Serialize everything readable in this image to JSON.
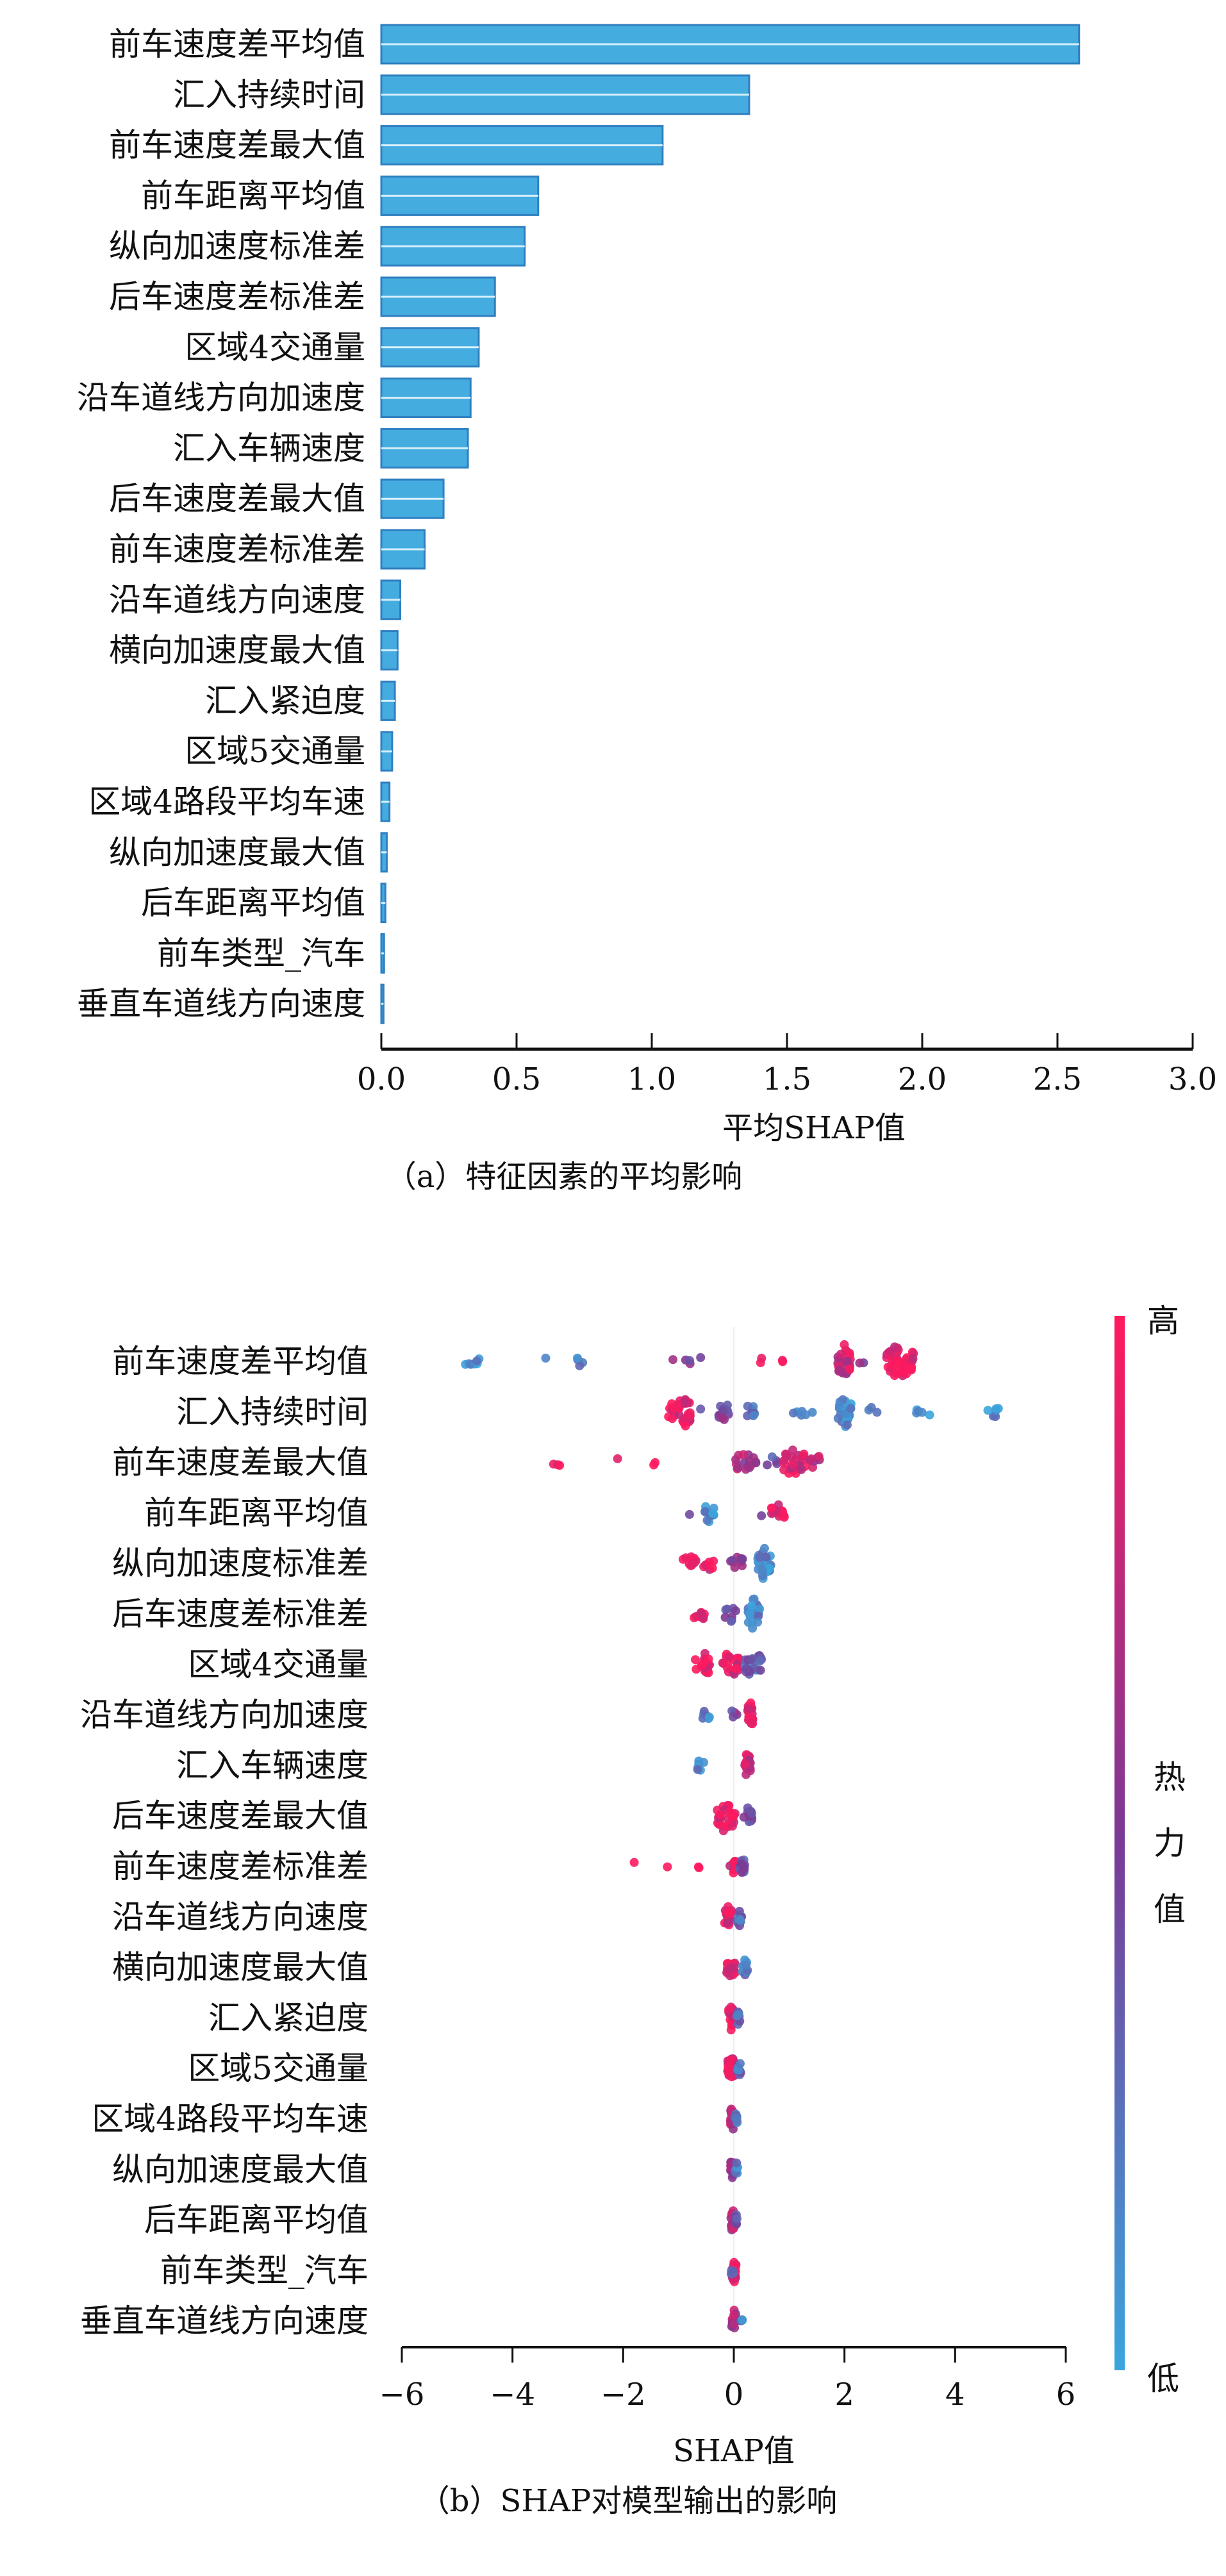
{
  "chart_data": [
    {
      "type": "bar",
      "orientation": "horizontal",
      "title": "",
      "caption": "（a）特征因素的平均影响",
      "xlabel": "平均SHAP值",
      "ylabel": "",
      "xlim": [
        0,
        3.0
      ],
      "xticks": [
        "0.0",
        "0.5",
        "1.0",
        "1.5",
        "2.0",
        "2.5",
        "3.0"
      ],
      "categories": [
        "前车速度差平均值",
        "汇入持续时间",
        "前车速度差最大值",
        "前车距离平均值",
        "纵向加速度标准差",
        "后车速度差标准差",
        "区域4交通量",
        "沿车道线方向加速度",
        "汇入车辆速度",
        "后车速度差最大值",
        "前车速度差标准差",
        "沿车道线方向速度",
        "横向加速度最大值",
        "汇入紧迫度",
        "区域5交通量",
        "区域4路段平均车速",
        "纵向加速度最大值",
        "后车距离平均值",
        "前车类型_汽车",
        "垂直车道线方向速度"
      ],
      "values": [
        2.58,
        1.36,
        1.04,
        0.58,
        0.53,
        0.42,
        0.36,
        0.33,
        0.32,
        0.23,
        0.16,
        0.07,
        0.06,
        0.05,
        0.04,
        0.03,
        0.02,
        0.015,
        0.01,
        0.008
      ],
      "bar_color": "#45ace0"
    },
    {
      "type": "scatter",
      "subtype": "beeswarm",
      "caption": "（b）SHAP对模型输出的影响",
      "xlabel": "SHAP值",
      "xlim": [
        -6,
        6
      ],
      "xticks": [
        "−6",
        "−4",
        "−2",
        "0",
        "2",
        "4",
        "6"
      ],
      "xtick_values": [
        -6,
        -4,
        -2,
        0,
        2,
        4,
        6
      ],
      "colorbar": {
        "high_label": "高",
        "low_label": "低",
        "title": [
          "热",
          "力",
          "值"
        ],
        "low_color": "#3aa6dd",
        "mid_color": "#7a3a96",
        "high_color": "#ff1a5e"
      },
      "features": [
        {
          "name": "前车速度差平均值",
          "groups": [
            [
              -4.7,
              0.15,
              7,
              0.1
            ],
            [
              -3.4,
              0,
              1,
              0.15
            ],
            [
              -2.8,
              0.08,
              4,
              0.15
            ],
            [
              -1.1,
              0,
              1,
              0.5
            ],
            [
              -0.8,
              0.08,
              3,
              0.5
            ],
            [
              -0.6,
              0,
              1,
              0.5
            ],
            [
              0.5,
              0.05,
              2,
              0.95
            ],
            [
              0.9,
              0.05,
              2,
              0.95
            ],
            [
              2.0,
              0.12,
              28,
              0.8
            ],
            [
              2.3,
              0.05,
              2,
              0.5
            ],
            [
              3.0,
              0.25,
              45,
              0.9
            ]
          ]
        },
        {
          "name": "汇入持续时间",
          "groups": [
            [
              -1.1,
              0.1,
              12,
              0.95
            ],
            [
              -0.9,
              0.12,
              28,
              0.9
            ],
            [
              -0.6,
              0,
              1,
              0.5
            ],
            [
              -0.15,
              0.12,
              14,
              0.5
            ],
            [
              0.3,
              0.08,
              10,
              0.25
            ],
            [
              1.2,
              0.25,
              6,
              0.2
            ],
            [
              2.0,
              0.12,
              28,
              0.15
            ],
            [
              2.5,
              0.1,
              3,
              0.2
            ],
            [
              3.4,
              0.25,
              5,
              0.15
            ],
            [
              4.7,
              0.12,
              6,
              0.1
            ]
          ]
        },
        {
          "name": "前车速度差最大值",
          "groups": [
            [
              -3.2,
              0.08,
              3,
              1.0
            ],
            [
              -2.1,
              0,
              1,
              1.0
            ],
            [
              -1.4,
              0.05,
              2,
              1.0
            ],
            [
              0.2,
              0.2,
              16,
              0.7
            ],
            [
              0.7,
              0.1,
              4,
              0.4
            ],
            [
              1.1,
              0.2,
              26,
              0.85
            ],
            [
              1.5,
              0.12,
              8,
              0.7
            ]
          ]
        },
        {
          "name": "前车距离平均值",
          "groups": [
            [
              -0.8,
              0,
              1,
              0.4
            ],
            [
              -0.45,
              0.1,
              12,
              0.15
            ],
            [
              0.5,
              0,
              1,
              0.5
            ],
            [
              0.8,
              0.12,
              14,
              0.95
            ]
          ]
        },
        {
          "name": "纵向加速度标准差",
          "groups": [
            [
              -0.8,
              0.12,
              10,
              0.95
            ],
            [
              -0.45,
              0.1,
              8,
              0.9
            ],
            [
              0.05,
              0.12,
              10,
              0.6
            ],
            [
              0.55,
              0.12,
              28,
              0.15
            ]
          ]
        },
        {
          "name": "后车速度差标准差",
          "groups": [
            [
              -0.6,
              0.12,
              9,
              0.95
            ],
            [
              -0.05,
              0.12,
              8,
              0.4
            ],
            [
              0.35,
              0.12,
              26,
              0.15
            ]
          ]
        },
        {
          "name": "区域4交通量",
          "groups": [
            [
              -0.55,
              0.15,
              18,
              0.95
            ],
            [
              -0.05,
              0.15,
              22,
              0.9
            ],
            [
              0.35,
              0.15,
              24,
              0.3
            ]
          ]
        },
        {
          "name": "沿车道线方向加速度",
          "groups": [
            [
              -0.5,
              0.06,
              6,
              0.15
            ],
            [
              0.0,
              0.06,
              4,
              0.5
            ],
            [
              0.3,
              0.05,
              24,
              0.9
            ]
          ]
        },
        {
          "name": "汇入车辆速度",
          "groups": [
            [
              -0.6,
              0.08,
              6,
              0.15
            ],
            [
              0.25,
              0.05,
              22,
              0.8
            ]
          ]
        },
        {
          "name": "后车速度差最大值",
          "groups": [
            [
              -0.15,
              0.18,
              30,
              0.9
            ],
            [
              0.25,
              0.08,
              12,
              0.4
            ]
          ]
        },
        {
          "name": "前车速度差标准差",
          "groups": [
            [
              -1.8,
              0,
              1,
              1.0
            ],
            [
              -1.2,
              0,
              1,
              1.0
            ],
            [
              -0.6,
              0.05,
              2,
              1.0
            ],
            [
              -0.05,
              0.1,
              10,
              0.9
            ],
            [
              0.15,
              0.05,
              14,
              0.4
            ]
          ]
        },
        {
          "name": "沿车道线方向速度",
          "groups": [
            [
              -0.1,
              0.08,
              16,
              0.9
            ],
            [
              0.1,
              0.05,
              12,
              0.3
            ]
          ]
        },
        {
          "name": "横向加速度最大值",
          "groups": [
            [
              -0.05,
              0.08,
              16,
              0.9
            ],
            [
              0.2,
              0.06,
              10,
              0.2
            ]
          ]
        },
        {
          "name": "汇入紧迫度",
          "groups": [
            [
              -0.05,
              0.06,
              20,
              0.9
            ],
            [
              0.08,
              0.03,
              8,
              0.3
            ]
          ]
        },
        {
          "name": "区域5交通量",
          "groups": [
            [
              -0.05,
              0.07,
              20,
              0.85
            ],
            [
              0.1,
              0.04,
              8,
              0.25
            ]
          ]
        },
        {
          "name": "区域4路段平均车速",
          "groups": [
            [
              -0.03,
              0.04,
              20,
              0.7
            ],
            [
              0.05,
              0.03,
              8,
              0.2
            ]
          ]
        },
        {
          "name": "纵向加速度最大值",
          "groups": [
            [
              -0.02,
              0.04,
              20,
              0.6
            ],
            [
              0.05,
              0.02,
              6,
              0.2
            ]
          ]
        },
        {
          "name": "后车距离平均值",
          "groups": [
            [
              -0.02,
              0.04,
              18,
              0.7
            ],
            [
              0.04,
              0.02,
              6,
              0.3
            ]
          ]
        },
        {
          "name": "前车类型_汽车",
          "groups": [
            [
              0.0,
              0.04,
              22,
              0.9
            ],
            [
              -0.03,
              0.02,
              4,
              0.2
            ]
          ]
        },
        {
          "name": "垂直车道线方向速度",
          "groups": [
            [
              0.0,
              0.04,
              18,
              0.7
            ],
            [
              0.15,
              0.03,
              4,
              0.2
            ]
          ]
        }
      ]
    }
  ]
}
